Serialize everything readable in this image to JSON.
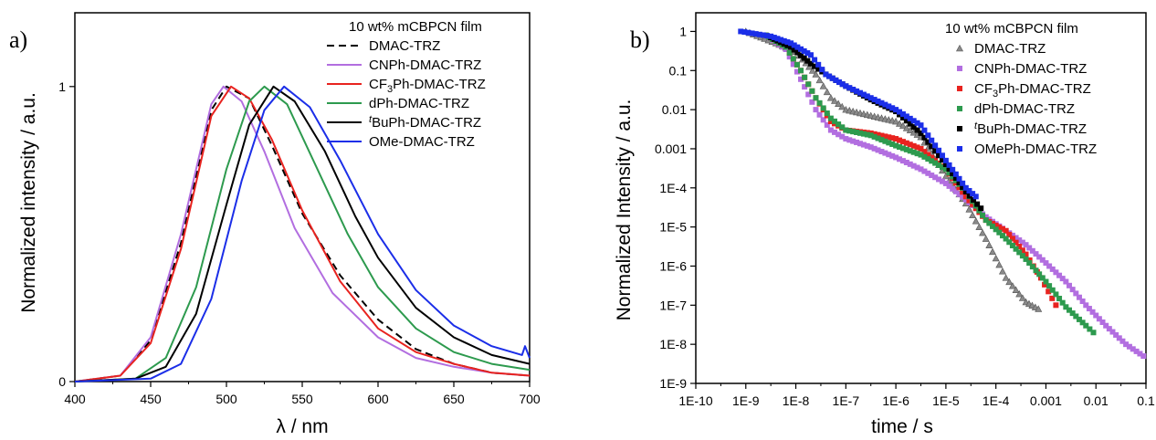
{
  "chart_data": [
    {
      "id": "a",
      "type": "line",
      "panel_label": "a)",
      "xlabel": "λ / nm",
      "ylabel": "Normalized intensity / a.u.",
      "xlim": [
        400,
        700
      ],
      "ylim": [
        0,
        1.25
      ],
      "xticks": [
        400,
        450,
        500,
        550,
        600,
        650,
        700
      ],
      "yticks": [
        0,
        1
      ],
      "legend_title": "10 wt% mCBPCN film",
      "legend_position": "top-right",
      "series": [
        {
          "name": "DMAC-TRZ",
          "legend_html": "DMAC-TRZ",
          "color": "#000000",
          "dash": "dashed",
          "peak": 500,
          "fwhm": 80,
          "points": [
            [
              400,
              0
            ],
            [
              430,
              0.02
            ],
            [
              450,
              0.14
            ],
            [
              470,
              0.47
            ],
            [
              490,
              0.92
            ],
            [
              500,
              1.0
            ],
            [
              515,
              0.96
            ],
            [
              530,
              0.8
            ],
            [
              550,
              0.57
            ],
            [
              575,
              0.36
            ],
            [
              600,
              0.21
            ],
            [
              625,
              0.11
            ],
            [
              650,
              0.06
            ],
            [
              675,
              0.03
            ],
            [
              700,
              0.02
            ]
          ]
        },
        {
          "name": "CNPh-DMAC-TRZ",
          "legend_html": "CNPh-DMAC-TRZ",
          "color": "#b26ee0",
          "dash": "solid",
          "peak": 498,
          "fwhm": 78,
          "points": [
            [
              400,
              0
            ],
            [
              430,
              0.02
            ],
            [
              450,
              0.15
            ],
            [
              470,
              0.5
            ],
            [
              490,
              0.94
            ],
            [
              498,
              1.0
            ],
            [
              510,
              0.95
            ],
            [
              525,
              0.78
            ],
            [
              545,
              0.52
            ],
            [
              570,
              0.3
            ],
            [
              600,
              0.15
            ],
            [
              625,
              0.08
            ],
            [
              650,
              0.05
            ],
            [
              675,
              0.03
            ],
            [
              700,
              0.02
            ]
          ]
        },
        {
          "name": "CF3Ph-DMAC-TRZ",
          "legend_html": "CF<tspan dy='4' font-size='11'>3</tspan><tspan dy='-4'>Ph-DMAC-TRZ</tspan>",
          "color": "#e8231f",
          "dash": "solid",
          "peak": 503,
          "fwhm": 80,
          "points": [
            [
              400,
              0
            ],
            [
              430,
              0.02
            ],
            [
              450,
              0.13
            ],
            [
              470,
              0.45
            ],
            [
              490,
              0.9
            ],
            [
              503,
              1.0
            ],
            [
              515,
              0.96
            ],
            [
              530,
              0.82
            ],
            [
              550,
              0.58
            ],
            [
              575,
              0.34
            ],
            [
              600,
              0.18
            ],
            [
              625,
              0.1
            ],
            [
              650,
              0.06
            ],
            [
              675,
              0.03
            ],
            [
              700,
              0.02
            ]
          ]
        },
        {
          "name": "dPh-DMAC-TRZ",
          "legend_html": "dPh-DMAC-TRZ",
          "color": "#2d9a4e",
          "dash": "solid",
          "peak": 525,
          "fwhm": 84,
          "points": [
            [
              400,
              0
            ],
            [
              440,
              0.01
            ],
            [
              460,
              0.08
            ],
            [
              480,
              0.32
            ],
            [
              500,
              0.72
            ],
            [
              515,
              0.95
            ],
            [
              525,
              1.0
            ],
            [
              540,
              0.94
            ],
            [
              560,
              0.72
            ],
            [
              580,
              0.5
            ],
            [
              600,
              0.32
            ],
            [
              625,
              0.18
            ],
            [
              650,
              0.1
            ],
            [
              675,
              0.06
            ],
            [
              700,
              0.04
            ]
          ]
        },
        {
          "name": "tBuPh-DMAC-TRZ",
          "legend_html": "<tspan font-style='italic' dy='-5' font-size='11'>t</tspan><tspan dy='5'>BuPh-DMAC-TRZ</tspan>",
          "color": "#000000",
          "dash": "solid",
          "peak": 531,
          "fwhm": 86,
          "points": [
            [
              400,
              0
            ],
            [
              440,
              0.01
            ],
            [
              460,
              0.05
            ],
            [
              480,
              0.23
            ],
            [
              500,
              0.6
            ],
            [
              515,
              0.87
            ],
            [
              531,
              1.0
            ],
            [
              545,
              0.95
            ],
            [
              565,
              0.78
            ],
            [
              585,
              0.56
            ],
            [
              600,
              0.42
            ],
            [
              625,
              0.25
            ],
            [
              650,
              0.15
            ],
            [
              675,
              0.09
            ],
            [
              700,
              0.06
            ]
          ]
        },
        {
          "name": "OMe-DMAC-TRZ",
          "legend_html": "OMe-DMAC-TRZ",
          "color": "#1b2ee8",
          "dash": "solid",
          "peak": 538,
          "fwhm": 88,
          "points": [
            [
              400,
              0
            ],
            [
              450,
              0.01
            ],
            [
              470,
              0.06
            ],
            [
              490,
              0.28
            ],
            [
              510,
              0.68
            ],
            [
              525,
              0.92
            ],
            [
              538,
              1.0
            ],
            [
              555,
              0.93
            ],
            [
              575,
              0.75
            ],
            [
              600,
              0.5
            ],
            [
              625,
              0.31
            ],
            [
              650,
              0.19
            ],
            [
              675,
              0.12
            ],
            [
              695,
              0.09
            ],
            [
              697,
              0.12
            ],
            [
              700,
              0.08
            ]
          ]
        }
      ]
    },
    {
      "id": "b",
      "type": "scatter",
      "panel_label": "b)",
      "xlabel": "time / s",
      "ylabel": "Normalized Intensity / a.u.",
      "xscale": "log",
      "yscale": "log",
      "xlim": [
        1e-10,
        0.1
      ],
      "ylim": [
        1e-09,
        3
      ],
      "xtick_labels": [
        "1E-10",
        "1E-9",
        "1E-8",
        "1E-7",
        "1E-6",
        "1E-5",
        "1E-4",
        "0.001",
        "0.01",
        "0.1"
      ],
      "ytick_labels": [
        "1E-9",
        "1E-8",
        "1E-7",
        "1E-6",
        "1E-5",
        "1E-4",
        "0.001",
        "0.01",
        "0.1",
        "1"
      ],
      "legend_title": "10 wt% mCBPCN film",
      "legend_position": "top-right",
      "series": [
        {
          "name": "DMAC-TRZ",
          "legend_html": "DMAC-TRZ",
          "color": "#8a8a8a",
          "marker": "triangle",
          "points": [
            [
              -9,
              1
            ],
            [
              -8.4,
              0.5
            ],
            [
              -8,
              0.3
            ],
            [
              -7.6,
              0.08
            ],
            [
              -7.3,
              0.02
            ],
            [
              -7,
              0.01
            ],
            [
              -6.5,
              0.007
            ],
            [
              -6,
              0.005
            ],
            [
              -5.5,
              0.002
            ],
            [
              -5,
              0.0002
            ],
            [
              -4.6,
              4e-05
            ],
            [
              -4.2,
              5e-06
            ],
            [
              -3.8,
              5e-07
            ],
            [
              -3.4,
              1.2e-07
            ],
            [
              -3.15,
              8e-08
            ]
          ]
        },
        {
          "name": "CNPh-DMAC-TRZ",
          "legend_html": "CNPh-DMAC-TRZ",
          "color": "#b26ee0",
          "marker": "square",
          "points": [
            [
              -8.6,
              0.8
            ],
            [
              -8.2,
              0.35
            ],
            [
              -7.9,
              0.06
            ],
            [
              -7.6,
              0.01
            ],
            [
              -7.3,
              0.003
            ],
            [
              -7,
              0.0018
            ],
            [
              -6.5,
              0.0011
            ],
            [
              -6,
              0.0006
            ],
            [
              -5.5,
              0.0003
            ],
            [
              -5,
              0.00013
            ],
            [
              -4.6,
              5e-05
            ],
            [
              -4.2,
              1.8e-05
            ],
            [
              -3.8,
              8e-06
            ],
            [
              -3.4,
              3.5e-06
            ],
            [
              -3,
              1.2e-06
            ],
            [
              -2.6,
              4e-07
            ],
            [
              -2.2,
              1e-07
            ],
            [
              -1.8,
              3e-08
            ],
            [
              -1.4,
              1e-08
            ],
            [
              -1.05,
              5e-09
            ]
          ]
        },
        {
          "name": "CF3Ph-DMAC-TRZ",
          "legend_html": "CF<tspan dy='4' font-size='11'>3</tspan><tspan dy='-4'>Ph-DMAC-TRZ</tspan>",
          "color": "#e8231f",
          "marker": "square",
          "points": [
            [
              -8.6,
              0.8
            ],
            [
              -8.2,
              0.4
            ],
            [
              -7.9,
              0.1
            ],
            [
              -7.6,
              0.02
            ],
            [
              -7.3,
              0.005
            ],
            [
              -7,
              0.003
            ],
            [
              -6.5,
              0.0025
            ],
            [
              -6,
              0.0018
            ],
            [
              -5.5,
              0.001
            ],
            [
              -5,
              0.0003
            ],
            [
              -4.6,
              6e-05
            ],
            [
              -4.2,
              1.5e-05
            ],
            [
              -3.8,
              8e-06
            ],
            [
              -3.4,
              2e-06
            ],
            [
              -3.1,
              5e-07
            ],
            [
              -2.8,
              1e-07
            ]
          ]
        },
        {
          "name": "dPh-DMAC-TRZ",
          "legend_html": "dPh-DMAC-TRZ",
          "color": "#2d9a4e",
          "marker": "square",
          "points": [
            [
              -8.6,
              0.8
            ],
            [
              -8.2,
              0.4
            ],
            [
              -7.9,
              0.1
            ],
            [
              -7.6,
              0.02
            ],
            [
              -7.3,
              0.006
            ],
            [
              -7,
              0.003
            ],
            [
              -6.5,
              0.0022
            ],
            [
              -6,
              0.0012
            ],
            [
              -5.5,
              0.0007
            ],
            [
              -5,
              0.0003
            ],
            [
              -4.6,
              8e-05
            ],
            [
              -4.2,
              1.5e-05
            ],
            [
              -3.8,
              5e-06
            ],
            [
              -3.4,
              1.5e-06
            ],
            [
              -3,
              4e-07
            ],
            [
              -2.6,
              9e-08
            ],
            [
              -2.2,
              3e-08
            ],
            [
              -2.05,
              2e-08
            ]
          ]
        },
        {
          "name": "tBuPh-DMAC-TRZ",
          "legend_html": "<tspan font-style='italic' dy='-5' font-size='11'>t</tspan><tspan dy='5'>BuPh-DMAC-TRZ</tspan>",
          "color": "#000000",
          "marker": "square",
          "points": [
            [
              -8.5,
              0.7
            ],
            [
              -8.1,
              0.4
            ],
            [
              -7.7,
              0.15
            ],
            [
              -7.4,
              0.08
            ],
            [
              -7,
              0.04
            ],
            [
              -6.5,
              0.018
            ],
            [
              -6,
              0.009
            ],
            [
              -5.5,
              0.0025
            ],
            [
              -5,
              0.0004
            ],
            [
              -4.6,
              8e-05
            ],
            [
              -4.3,
              3e-05
            ]
          ]
        },
        {
          "name": "OMePh-DMAC-TRZ",
          "legend_html": "OMePh-DMAC-TRZ",
          "color": "#1b2ee8",
          "marker": "square",
          "points": [
            [
              -9.1,
              1
            ],
            [
              -8.5,
              0.75
            ],
            [
              -8.1,
              0.5
            ],
            [
              -7.7,
              0.25
            ],
            [
              -7.4,
              0.08
            ],
            [
              -7,
              0.04
            ],
            [
              -6.5,
              0.02
            ],
            [
              -6,
              0.01
            ],
            [
              -5.5,
              0.004
            ],
            [
              -5,
              0.0005
            ],
            [
              -4.6,
              0.0001
            ],
            [
              -4.4,
              6e-05
            ]
          ]
        }
      ]
    }
  ]
}
